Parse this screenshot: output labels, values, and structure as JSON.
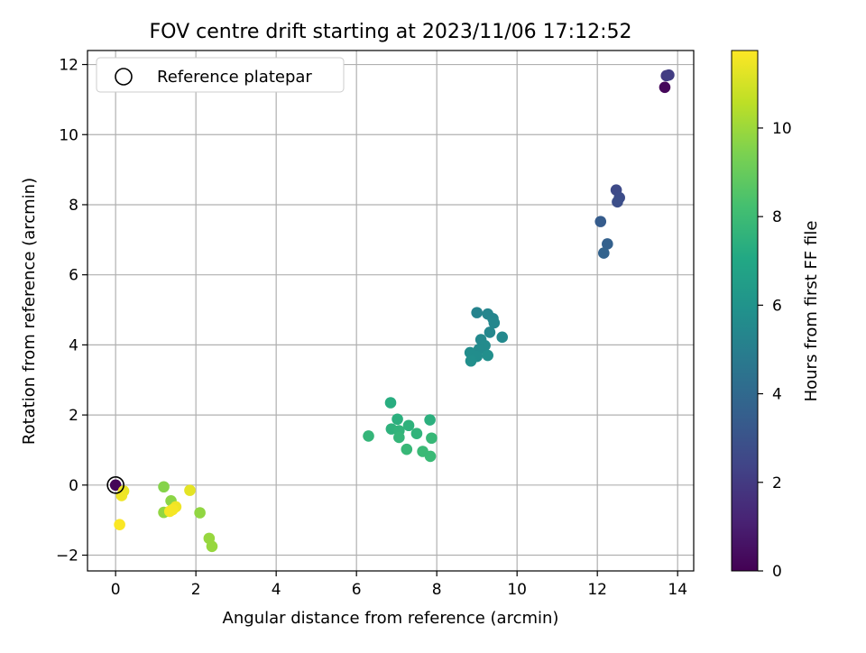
{
  "chart_data": {
    "type": "scatter",
    "title": "FOV centre drift starting at 2023/11/06 17:12:52",
    "xlabel": "Angular distance from reference (arcmin)",
    "ylabel": "Rotation from reference (arcmin)",
    "xlim": [
      -0.7,
      14.4
    ],
    "ylim": [
      -2.45,
      12.4
    ],
    "xticks": [
      0,
      2,
      4,
      6,
      8,
      10,
      12,
      14
    ],
    "yticks": [
      -2,
      0,
      2,
      4,
      6,
      8,
      10,
      12
    ],
    "grid": true,
    "legend": {
      "placement": "top-left",
      "entries": [
        "Reference platepar"
      ]
    },
    "reference_point": {
      "x": 0,
      "y": 0
    },
    "colorbar": {
      "label": "Hours from first FF file",
      "range": [
        0,
        11.75
      ],
      "ticks": [
        0,
        2,
        4,
        6,
        8,
        10
      ],
      "colormap": "viridis"
    },
    "points": [
      {
        "x": 0.0,
        "y": 0.0,
        "c": 0.1
      },
      {
        "x": 13.68,
        "y": 11.35,
        "c": 0.2
      },
      {
        "x": 13.72,
        "y": 11.68,
        "c": 2.0
      },
      {
        "x": 13.78,
        "y": 11.7,
        "c": 2.1
      },
      {
        "x": 12.47,
        "y": 8.42,
        "c": 2.6
      },
      {
        "x": 12.55,
        "y": 8.2,
        "c": 2.7
      },
      {
        "x": 12.5,
        "y": 8.08,
        "c": 2.8
      },
      {
        "x": 12.08,
        "y": 7.52,
        "c": 3.4
      },
      {
        "x": 12.25,
        "y": 6.88,
        "c": 3.6
      },
      {
        "x": 12.16,
        "y": 6.62,
        "c": 3.7
      },
      {
        "x": 9.0,
        "y": 4.92,
        "c": 5.2
      },
      {
        "x": 9.27,
        "y": 4.88,
        "c": 5.3
      },
      {
        "x": 9.4,
        "y": 4.75,
        "c": 5.3
      },
      {
        "x": 9.43,
        "y": 4.63,
        "c": 5.4
      },
      {
        "x": 9.32,
        "y": 4.36,
        "c": 5.4
      },
      {
        "x": 9.63,
        "y": 4.22,
        "c": 5.5
      },
      {
        "x": 9.1,
        "y": 4.15,
        "c": 5.5
      },
      {
        "x": 9.2,
        "y": 3.98,
        "c": 5.6
      },
      {
        "x": 9.05,
        "y": 3.87,
        "c": 5.6
      },
      {
        "x": 8.83,
        "y": 3.78,
        "c": 5.7
      },
      {
        "x": 9.0,
        "y": 3.67,
        "c": 5.7
      },
      {
        "x": 9.27,
        "y": 3.7,
        "c": 5.8
      },
      {
        "x": 8.85,
        "y": 3.54,
        "c": 5.8
      },
      {
        "x": 6.85,
        "y": 2.35,
        "c": 7.3
      },
      {
        "x": 7.02,
        "y": 1.88,
        "c": 7.4
      },
      {
        "x": 7.83,
        "y": 1.86,
        "c": 7.4
      },
      {
        "x": 7.3,
        "y": 1.7,
        "c": 7.5
      },
      {
        "x": 6.87,
        "y": 1.6,
        "c": 7.5
      },
      {
        "x": 7.06,
        "y": 1.55,
        "c": 7.6
      },
      {
        "x": 7.5,
        "y": 1.47,
        "c": 7.6
      },
      {
        "x": 7.06,
        "y": 1.36,
        "c": 7.7
      },
      {
        "x": 6.3,
        "y": 1.4,
        "c": 7.7
      },
      {
        "x": 7.87,
        "y": 1.34,
        "c": 7.8
      },
      {
        "x": 7.25,
        "y": 1.02,
        "c": 7.8
      },
      {
        "x": 7.65,
        "y": 0.96,
        "c": 7.9
      },
      {
        "x": 7.84,
        "y": 0.82,
        "c": 7.9
      },
      {
        "x": 1.2,
        "y": -0.05,
        "c": 9.6
      },
      {
        "x": 1.38,
        "y": -0.45,
        "c": 9.7
      },
      {
        "x": 1.2,
        "y": -0.78,
        "c": 9.8
      },
      {
        "x": 2.1,
        "y": -0.79,
        "c": 9.8
      },
      {
        "x": 2.33,
        "y": -1.52,
        "c": 9.9
      },
      {
        "x": 2.4,
        "y": -1.75,
        "c": 9.9
      },
      {
        "x": 1.85,
        "y": -0.15,
        "c": 11.3
      },
      {
        "x": 0.2,
        "y": -0.17,
        "c": 11.4
      },
      {
        "x": 0.15,
        "y": -0.3,
        "c": 11.5
      },
      {
        "x": 1.5,
        "y": -0.62,
        "c": 11.5
      },
      {
        "x": 1.42,
        "y": -0.7,
        "c": 11.6
      },
      {
        "x": 1.35,
        "y": -0.75,
        "c": 11.6
      },
      {
        "x": 0.1,
        "y": -1.13,
        "c": 11.7
      }
    ]
  }
}
